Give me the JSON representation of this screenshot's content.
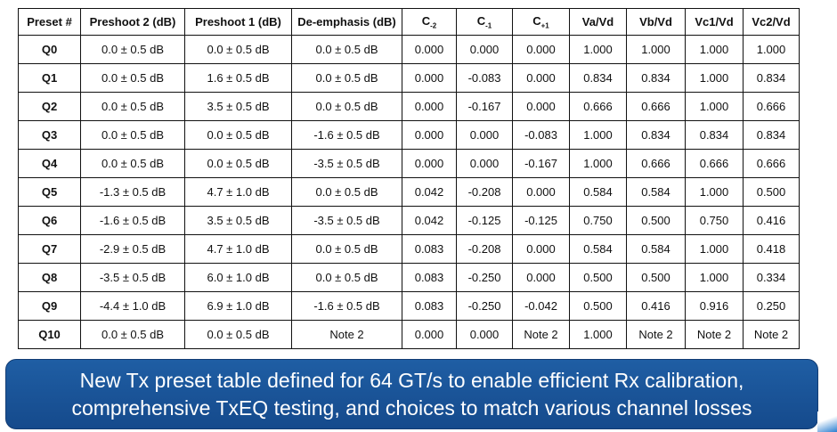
{
  "table": {
    "columns": [
      "Preset #",
      "Preshoot 2 (dB)",
      "Preshoot 1 (dB)",
      "De-emphasis (dB)",
      "C",
      "C",
      "C",
      "Va/Vd",
      "Vb/Vd",
      "Vc1/Vd",
      "Vc2/Vd"
    ],
    "coef_subscripts": [
      "-2",
      "-1",
      "+1"
    ],
    "rows": [
      [
        "Q0",
        "0.0 ± 0.5 dB",
        "0.0 ± 0.5 dB",
        "0.0 ± 0.5 dB",
        "0.000",
        "0.000",
        "0.000",
        "1.000",
        "1.000",
        "1.000",
        "1.000"
      ],
      [
        "Q1",
        "0.0 ± 0.5 dB",
        "1.6 ± 0.5 dB",
        "0.0 ± 0.5 dB",
        "0.000",
        "-0.083",
        "0.000",
        "0.834",
        "0.834",
        "1.000",
        "0.834"
      ],
      [
        "Q2",
        "0.0 ± 0.5 dB",
        "3.5 ± 0.5 dB",
        "0.0 ± 0.5 dB",
        "0.000",
        "-0.167",
        "0.000",
        "0.666",
        "0.666",
        "1.000",
        "0.666"
      ],
      [
        "Q3",
        "0.0 ± 0.5 dB",
        "0.0 ± 0.5 dB",
        "-1.6 ± 0.5 dB",
        "0.000",
        "0.000",
        "-0.083",
        "1.000",
        "0.834",
        "0.834",
        "0.834"
      ],
      [
        "Q4",
        "0.0 ± 0.5 dB",
        "0.0 ± 0.5 dB",
        "-3.5 ± 0.5 dB",
        "0.000",
        "0.000",
        "-0.167",
        "1.000",
        "0.666",
        "0.666",
        "0.666"
      ],
      [
        "Q5",
        "-1.3 ± 0.5 dB",
        "4.7 ± 1.0 dB",
        "0.0 ± 0.5 dB",
        "0.042",
        "-0.208",
        "0.000",
        "0.584",
        "0.584",
        "1.000",
        "0.500"
      ],
      [
        "Q6",
        "-1.6 ± 0.5 dB",
        "3.5 ± 0.5 dB",
        "-3.5 ± 0.5 dB",
        "0.042",
        "-0.125",
        "-0.125",
        "0.750",
        "0.500",
        "0.750",
        "0.416"
      ],
      [
        "Q7",
        "-2.9 ± 0.5 dB",
        "4.7 ± 1.0 dB",
        "0.0 ± 0.5 dB",
        "0.083",
        "-0.208",
        "0.000",
        "0.584",
        "0.584",
        "1.000",
        "0.418"
      ],
      [
        "Q8",
        "-3.5 ± 0.5 dB",
        "6.0 ± 1.0 dB",
        "0.0 ± 0.5 dB",
        "0.083",
        "-0.250",
        "0.000",
        "0.500",
        "0.500",
        "1.000",
        "0.334"
      ],
      [
        "Q9",
        "-4.4 ± 1.0 dB",
        "6.9 ± 1.0 dB",
        "-1.6 ± 0.5 dB",
        "0.083",
        "-0.250",
        "-0.042",
        "0.500",
        "0.416",
        "0.916",
        "0.250"
      ],
      [
        "Q10",
        "0.0 ± 0.5 dB",
        "0.0 ± 0.5 dB",
        "Note 2",
        "0.000",
        "0.000",
        "Note 2",
        "1.000",
        "Note 2",
        "Note 2",
        "Note 2"
      ]
    ]
  },
  "banner": {
    "line1": "New Tx preset table defined for 64 GT/s to enable efficient Rx calibration,",
    "line2": "comprehensive TxEQ testing, and choices to match various channel losses"
  },
  "colors": {
    "banner": "#1a54a0",
    "text": "#111111"
  }
}
